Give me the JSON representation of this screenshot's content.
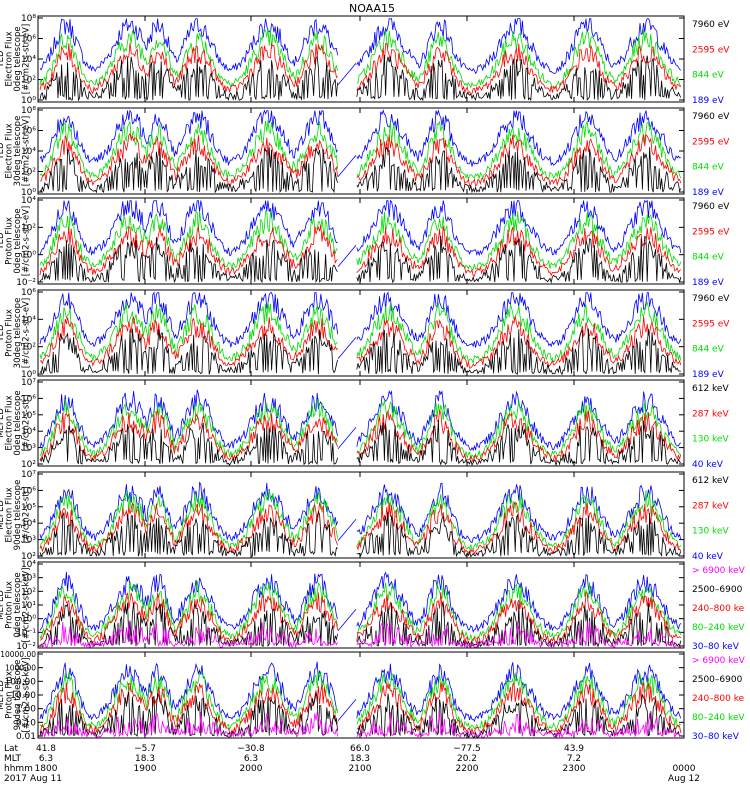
{
  "title": "NOAA15",
  "colors": {
    "black": "#000000",
    "red": "#ff0000",
    "green": "#00dd00",
    "blue": "#0000ff",
    "magenta": "#ff00ff",
    "frame": "#000000"
  },
  "panels": [
    {
      "instrument": "TED",
      "ylabel_lines": [
        "TED",
        "Electron Flux",
        "0deg telescope",
        "[#/cm2-s-str-eV]"
      ],
      "yticks": [
        "10⁰",
        "10²",
        "10⁴",
        "10⁶",
        "10⁸"
      ],
      "legend": [
        {
          "text": "7960 eV",
          "color": "#000000"
        },
        {
          "text": "2595 eV",
          "color": "#ff0000"
        },
        {
          "text": "844 eV",
          "color": "#00dd00"
        },
        {
          "text": "189 eV",
          "color": "#0000ff"
        }
      ]
    },
    {
      "instrument": "TED",
      "ylabel_lines": [
        "TED",
        "Electron Flux",
        "30deg telescope",
        "[#/cm2-s-str-eV]"
      ],
      "yticks": [
        "10⁰",
        "10²",
        "10⁴",
        "10⁶",
        "10⁸"
      ],
      "legend": [
        {
          "text": "7960 eV",
          "color": "#000000"
        },
        {
          "text": "2595 eV",
          "color": "#ff0000"
        },
        {
          "text": "844 eV",
          "color": "#00dd00"
        },
        {
          "text": "189 eV",
          "color": "#0000ff"
        }
      ]
    },
    {
      "instrument": "TED",
      "ylabel_lines": [
        "TED",
        "Proton Flux",
        "0deg telescope",
        "[#/cm2-s-str-eV]"
      ],
      "yticks": [
        "10⁻²",
        "10⁰",
        "10²",
        "10⁴"
      ],
      "legend": [
        {
          "text": "7960 eV",
          "color": "#000000"
        },
        {
          "text": "2595 eV",
          "color": "#ff0000"
        },
        {
          "text": "844 eV",
          "color": "#00dd00"
        },
        {
          "text": "189 eV",
          "color": "#0000ff"
        }
      ]
    },
    {
      "instrument": "TED",
      "ylabel_lines": [
        "TED",
        "Proton Flux",
        "30deg telescope",
        "[#/cm2-s-str-eV]"
      ],
      "yticks": [
        "10⁰",
        "10²",
        "10⁴",
        "10⁶"
      ],
      "legend": [
        {
          "text": "7960 eV",
          "color": "#000000"
        },
        {
          "text": "2595 eV",
          "color": "#ff0000"
        },
        {
          "text": "844 eV",
          "color": "#00dd00"
        },
        {
          "text": "189 eV",
          "color": "#0000ff"
        }
      ]
    },
    {
      "instrument": "MEPED",
      "ylabel_lines": [
        "MEPED",
        "Electron Flux",
        "0deg telescope",
        "[#/cm2-s-str]"
      ],
      "yticks": [
        "10²",
        "10³",
        "10⁴",
        "10⁵",
        "10⁶",
        "10⁷"
      ],
      "legend": [
        {
          "text": "612 keV",
          "color": "#000000"
        },
        {
          "text": "287 keV",
          "color": "#ff0000"
        },
        {
          "text": "130 keV",
          "color": "#00dd00"
        },
        {
          "text": "40 keV",
          "color": "#0000ff"
        }
      ]
    },
    {
      "instrument": "MEPED",
      "ylabel_lines": [
        "MEPED",
        "Electron Flux",
        "90deg telescope",
        "[#/cm2-s-str]"
      ],
      "yticks": [
        "10²",
        "10³",
        "10⁴",
        "10⁵",
        "10⁶",
        "10⁷"
      ],
      "legend": [
        {
          "text": "612 keV",
          "color": "#000000"
        },
        {
          "text": "287 keV",
          "color": "#ff0000"
        },
        {
          "text": "130 keV",
          "color": "#00dd00"
        },
        {
          "text": "40 keV",
          "color": "#0000ff"
        }
      ]
    },
    {
      "instrument": "MEPED",
      "ylabel_lines": [
        "MEPED",
        "Proton Flux",
        "0deg telescope",
        "[#/cm2-s-str-keV]"
      ],
      "yticks": [
        "10⁻²",
        "10⁻¹",
        "10⁰",
        "10¹",
        "10²",
        "10³",
        "10⁴"
      ],
      "legend": [
        {
          "text": "> 6900 keV",
          "color": "#ff00ff"
        },
        {
          "text": "2500–6900",
          "color": "#000000"
        },
        {
          "text": "240–800 ke",
          "color": "#ff0000"
        },
        {
          "text": "80–240 keV",
          "color": "#00dd00"
        },
        {
          "text": "30–80 keV",
          "color": "#0000ff"
        }
      ]
    },
    {
      "instrument": "MEPED",
      "ylabel_lines": [
        "MEPED",
        "Proton Flux",
        "90deg telescope",
        "[#/cm2-s-str-keV]"
      ],
      "yticks": [
        "0.01",
        "0.10",
        "1.00",
        "10.00",
        "100.00",
        "1000.00",
        "10000.00"
      ],
      "legend": [
        {
          "text": "> 6900 keV",
          "color": "#ff00ff"
        },
        {
          "text": "2500–6900",
          "color": "#000000"
        },
        {
          "text": "240–800 ke",
          "color": "#ff0000"
        },
        {
          "text": "80–240 keV",
          "color": "#00dd00"
        },
        {
          "text": "30–80 keV",
          "color": "#0000ff"
        }
      ]
    }
  ],
  "footer": {
    "row_labels": [
      "Lat",
      "MLT",
      "hhmm",
      "2017"
    ],
    "columns": [
      {
        "lat": "41.8",
        "mlt": "6.3",
        "hhmm": "1800",
        "date": "Aug 11"
      },
      {
        "lat": "−5.7",
        "mlt": "18.3",
        "hhmm": "1900",
        "date": ""
      },
      {
        "lat": "−30.8",
        "mlt": "6.3",
        "hhmm": "2000",
        "date": ""
      },
      {
        "lat": "66.0",
        "mlt": "18.3",
        "hhmm": "2100",
        "date": ""
      },
      {
        "lat": "−77.5",
        "mlt": "20.2",
        "hhmm": "2200",
        "date": ""
      },
      {
        "lat": "43.9",
        "mlt": "7.2",
        "hhmm": "2300",
        "date": ""
      },
      {
        "lat": "",
        "mlt": "",
        "hhmm": "0000",
        "date": "Aug 12"
      }
    ]
  },
  "chart_data": {
    "type": "line",
    "title": "NOAA15",
    "x_axis": {
      "hhmm": [
        "1800",
        "1900",
        "2000",
        "2100",
        "2200",
        "2300",
        "0000"
      ],
      "range": [
        "2017 Aug 11 18:00",
        "2017 Aug 12 00:00"
      ]
    },
    "y_scale": "log",
    "legend_placement": "right of each panel",
    "panel_count": 8,
    "orbit_bursts_hhmm": [
      "18:10",
      "18:50",
      "19:15",
      "19:45",
      "20:25",
      "21:00",
      "21:45",
      "22:35",
      "23:15",
      "23:45"
    ]
  }
}
